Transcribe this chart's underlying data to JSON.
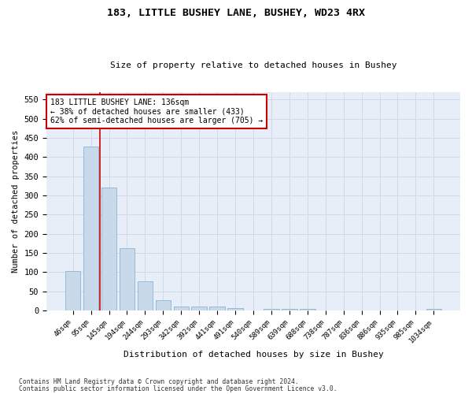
{
  "title1": "183, LITTLE BUSHEY LANE, BUSHEY, WD23 4RX",
  "title2": "Size of property relative to detached houses in Bushey",
  "xlabel": "Distribution of detached houses by size in Bushey",
  "ylabel": "Number of detached properties",
  "categories": [
    "46sqm",
    "95sqm",
    "145sqm",
    "194sqm",
    "244sqm",
    "293sqm",
    "342sqm",
    "392sqm",
    "441sqm",
    "491sqm",
    "540sqm",
    "589sqm",
    "639sqm",
    "688sqm",
    "738sqm",
    "787sqm",
    "836sqm",
    "886sqm",
    "935sqm",
    "985sqm",
    "1034sqm"
  ],
  "values": [
    103,
    427,
    320,
    163,
    75,
    26,
    11,
    11,
    11,
    7,
    0,
    5,
    5,
    5,
    0,
    0,
    0,
    0,
    0,
    0,
    5
  ],
  "bar_color": "#c8d9ea",
  "bar_edge_color": "#8ab4d4",
  "vline_x_index": 2,
  "vline_color": "#cc0000",
  "annotation_text": "183 LITTLE BUSHEY LANE: 136sqm\n← 38% of detached houses are smaller (433)\n62% of semi-detached houses are larger (705) →",
  "annotation_box_color": "#ffffff",
  "annotation_box_edge_color": "#cc0000",
  "ylim": [
    0,
    570
  ],
  "yticks": [
    0,
    50,
    100,
    150,
    200,
    250,
    300,
    350,
    400,
    450,
    500,
    550
  ],
  "footer_line1": "Contains HM Land Registry data © Crown copyright and database right 2024.",
  "footer_line2": "Contains public sector information licensed under the Open Government Licence v3.0.",
  "grid_color": "#d0d8ec",
  "background_color": "#e8eef8"
}
